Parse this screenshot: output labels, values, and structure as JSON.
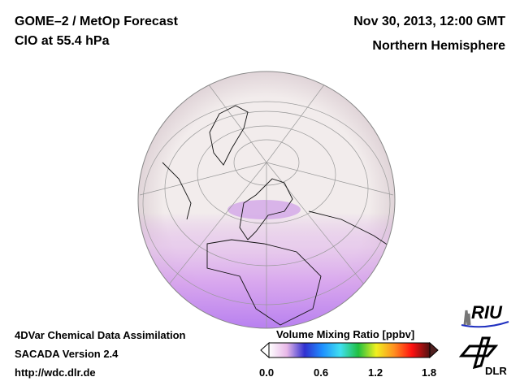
{
  "header": {
    "title": "GOME–2 / MetOp Forecast",
    "species": "ClO at 55.4 hPa",
    "datetime": "Nov 30, 2013, 12:00 GMT",
    "region": "Northern Hemisphere"
  },
  "footer": {
    "line1": "4DVar Chemical Data Assimilation",
    "line2": "SACADA Version 2.4",
    "link": "http://wdc.dlr.de"
  },
  "colorbar": {
    "title": "Volume Mixing Ratio [ppbv]",
    "ticks": [
      "0.0",
      "0.6",
      "1.2",
      "1.8"
    ],
    "min": 0,
    "max": 1.8,
    "colors": [
      "#ffffff",
      "#e8b8e8",
      "#3030d0",
      "#1e90ff",
      "#40e0f0",
      "#20c040",
      "#f0f020",
      "#ff9020",
      "#ff1010",
      "#501010"
    ]
  },
  "logos": {
    "riu": "RIU",
    "dlr": "DLR"
  },
  "map": {
    "projection": "orthographic",
    "background": "#f2ecec",
    "enhanced_color": "#c890e8"
  }
}
